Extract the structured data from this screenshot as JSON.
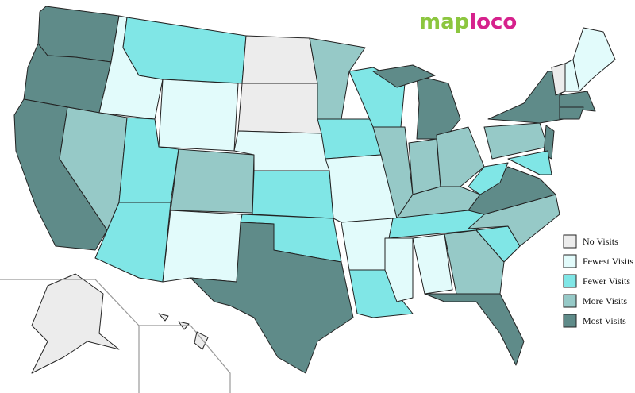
{
  "logo": {
    "parts": [
      {
        "text": "map",
        "color": "#8cc63f"
      },
      {
        "text": "loco",
        "color": "#d6218c"
      }
    ]
  },
  "legend": {
    "items": [
      {
        "label": "No Visits",
        "color": "#ececec"
      },
      {
        "label": "Fewest Visits",
        "color": "#e2fbfb"
      },
      {
        "label": "Fewer Visits",
        "color": "#80e6e6"
      },
      {
        "label": "More Visits",
        "color": "#96c9c7"
      },
      {
        "label": "Most Visits",
        "color": "#5f8b89"
      }
    ]
  }
}
